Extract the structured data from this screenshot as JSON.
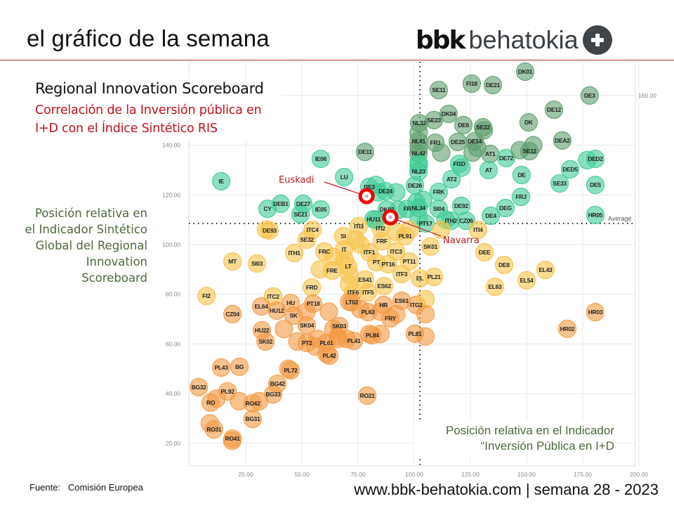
{
  "header": {
    "title": "el gráfico de la semana",
    "logo_bold": "bbk",
    "logo_text": "behatokia"
  },
  "footer": {
    "source": "Fuente:   Comisión Europea",
    "website": "www.bbk-behatokia.com | semana 28 - 2023"
  },
  "colors": {
    "accent_red": "#c0141c",
    "dark_green": "#5e9e6c",
    "green": "#3fcb95",
    "yellow": "#f7c34a",
    "orange": "#f49a44",
    "rule": "#aa3333"
  },
  "chart_data": {
    "type": "scatter",
    "title": "Regional Innovation Scoreboard",
    "subtitle": "Correlación de la Inversión pública en I+D con el Índice Sintético RIS",
    "xlabel": "Posición relativa en el Indicador “Inversión Pública en I+D",
    "ylabel": "Posición relativa en el Indicador Sintético Global del Regional Innovation Scoreboard",
    "xlim": [
      0,
      200
    ],
    "ylim": [
      11,
      173
    ],
    "x_ticks": [
      "25.00",
      "50.00",
      "75.00",
      "100.00",
      "125.00",
      "150.00",
      "175.00",
      "200.00"
    ],
    "y_ticks": [
      "20.00",
      "40.00",
      "60.00",
      "80.00",
      "100.00",
      "120.00",
      "140.00",
      "160.00"
    ],
    "grid": true,
    "x_average": 102.5,
    "y_average": 108.5,
    "average_label": "Average",
    "highlights": [
      {
        "name": "Euskadi",
        "x": 78.8,
        "y": 119.5
      },
      {
        "name": "Navarra",
        "x": 89.4,
        "y": 111.0
      }
    ],
    "points": [
      [
        "DK01",
        149.4,
        169.6
      ],
      [
        "FI18",
        125.6,
        164.8
      ],
      [
        "DE21",
        135,
        164.2
      ],
      [
        "SE11",
        110.9,
        162.2
      ],
      [
        "DE3",
        178.1,
        160
      ],
      [
        "DE12",
        162.2,
        154.3
      ],
      [
        "DK",
        150.9,
        149.2
      ],
      [
        "DK04",
        115.3,
        152.6
      ],
      [
        "SE23",
        108.8,
        150.1
      ],
      [
        "NL32",
        102.2,
        148.9
      ],
      [
        "DE6",
        121.9,
        148.1
      ],
      [
        "SE22",
        130.6,
        147.2
      ],
      [
        "DEA2",
        165.9,
        141.9
      ],
      [
        "NL41",
        101.9,
        141.6
      ],
      [
        "FR1",
        109.4,
        141
      ],
      [
        "DE25",
        119.4,
        141.3
      ],
      [
        "DE14",
        126.9,
        141.6
      ],
      [
        "DE11",
        78.1,
        137.3
      ],
      [
        "SE12",
        151.3,
        137.6
      ],
      [
        "NL42",
        101.9,
        136.8
      ],
      [
        "AT1",
        133.8,
        136.5
      ],
      [
        "DE72",
        140.9,
        134.8
      ],
      [
        "IE06",
        58.4,
        134.5
      ],
      [
        "DED2",
        180.6,
        134.5
      ],
      [
        "FI1D",
        120,
        132.5
      ],
      [
        "NL23",
        101.9,
        129.4
      ],
      [
        "AT",
        133.1,
        130
      ],
      [
        "DE",
        147.8,
        128
      ],
      [
        "DED5",
        169.4,
        130.3
      ],
      [
        "LU",
        68.8,
        127.2
      ],
      [
        "IE",
        14.1,
        125.5
      ],
      [
        "AT2",
        116.6,
        126.3
      ],
      [
        "SE33",
        164.7,
        124.6
      ],
      [
        "DE5",
        180.6,
        124
      ],
      [
        "BE3",
        80,
        123.2
      ],
      [
        "DE24",
        87.2,
        121.5
      ],
      [
        "DE26",
        100.3,
        123.8
      ],
      [
        "FRK",
        110.9,
        121.2
      ],
      [
        "FRJ",
        147.5,
        119.2
      ],
      [
        "CY",
        34.7,
        114.4
      ],
      [
        "DEB1",
        40.6,
        116.4
      ],
      [
        "DE27",
        50.6,
        116.4
      ],
      [
        "IE05",
        58.4,
        114.1
      ],
      [
        "SE21",
        49.4,
        112.2
      ],
      [
        "DK02",
        87.8,
        114.1
      ],
      [
        "FR",
        96.9,
        114.4
      ],
      [
        "NL34",
        101.9,
        114.7
      ],
      [
        "SI04",
        110.9,
        114.4
      ],
      [
        "DE92",
        120.9,
        115.6
      ],
      [
        "DEG",
        140.6,
        114.7
      ],
      [
        "DE4",
        134.1,
        111.6
      ],
      [
        "HR05",
        180.6,
        111.9
      ],
      [
        "HU11",
        81.9,
        110.2
      ],
      [
        "CZ06",
        123.1,
        109.6
      ],
      [
        "ITH2",
        116.3,
        109.6
      ],
      [
        "PT17",
        105,
        108.5
      ],
      [
        "ITI3",
        75.3,
        107.4
      ],
      [
        "ITI2",
        85,
        106.5
      ],
      [
        "ITI4",
        128.4,
        105.9
      ],
      [
        "DE93",
        35.6,
        105.7
      ],
      [
        "ITC4",
        54.7,
        105.9
      ],
      [
        "SE32",
        52.2,
        102
      ],
      [
        "SI",
        68.4,
        103.4
      ],
      [
        "FRF",
        85.6,
        101.4
      ],
      [
        "PL91",
        95.9,
        103.4
      ],
      [
        "SK01",
        107.2,
        99.2
      ],
      [
        "DEE",
        131.3,
        96.9
      ],
      [
        "ITH1",
        46.6,
        96.6
      ],
      [
        "FRC",
        60,
        97.2
      ],
      [
        "IT",
        68.8,
        98
      ],
      [
        "ITF1",
        80,
        96.9
      ],
      [
        "ITC3",
        91.9,
        97.2
      ],
      [
        "MT",
        19.1,
        93.2
      ],
      [
        "SI03",
        30,
        92.4
      ],
      [
        "PT",
        83.1,
        92.9
      ],
      [
        "PT16",
        88.4,
        92.1
      ],
      [
        "PT11",
        97.8,
        93.2
      ],
      [
        "DE8",
        140,
        91.8
      ],
      [
        "FRE",
        63.4,
        89.5
      ],
      [
        "LT",
        70.6,
        91.2
      ],
      [
        "EL43",
        158.4,
        89.8
      ],
      [
        "ITF3",
        94.4,
        88.1
      ],
      [
        "EL",
        102.5,
        86.4
      ],
      [
        "PL21",
        108.8,
        87
      ],
      [
        "EL54",
        150,
        85.6
      ],
      [
        "ES41",
        78.1,
        85.9
      ],
      [
        "ES62",
        86.6,
        83.3
      ],
      [
        "EL63",
        135.9,
        83
      ],
      [
        "FRD",
        54.4,
        82.7
      ],
      [
        "ITF6",
        72.8,
        80.8
      ],
      [
        "ITF5",
        79.4,
        80.8
      ],
      [
        "FI2",
        7.5,
        79.3
      ],
      [
        "ITC2",
        37.2,
        79.1
      ],
      [
        "HU",
        45,
        76.5
      ],
      [
        "PT18",
        55,
        76.2
      ],
      [
        "LT02",
        72.2,
        76.8
      ],
      [
        "ES61",
        94.4,
        77.4
      ],
      [
        "HR",
        86.3,
        75.7
      ],
      [
        "ITG2",
        100.9,
        75.7
      ],
      [
        "EL64",
        31.9,
        75.1
      ],
      [
        "HU12",
        38.8,
        73.4
      ],
      [
        "PL63",
        79.4,
        72.8
      ],
      [
        "HR03",
        180.6,
        72.8
      ],
      [
        "CZ04",
        19.1,
        72
      ],
      [
        "SK",
        46.3,
        71.4
      ],
      [
        "FRY",
        89.4,
        70.3
      ],
      [
        "HU22",
        32.2,
        65.5
      ],
      [
        "SK04",
        52.2,
        67.5
      ],
      [
        "SK03",
        66.6,
        67.2
      ],
      [
        "HR02",
        168.1,
        66.1
      ],
      [
        "PL84",
        81.3,
        63.5
      ],
      [
        "PL81",
        100.3,
        64.1
      ],
      [
        "PL41",
        73.1,
        61.2
      ],
      [
        "SK02",
        33.8,
        61
      ],
      [
        "PT2",
        52.2,
        60.4
      ],
      [
        "PL61",
        60.9,
        60.4
      ],
      [
        "PL42",
        62.2,
        55.3
      ],
      [
        "PL43",
        14.1,
        50.5
      ],
      [
        "BG",
        22.2,
        50.8
      ],
      [
        "PL72",
        45,
        49.4
      ],
      [
        "BG42",
        39.1,
        44
      ],
      [
        "BG32",
        4.1,
        42.6
      ],
      [
        "PL92",
        16.9,
        40.9
      ],
      [
        "BG33",
        37.2,
        39.7
      ],
      [
        "RO21",
        79.1,
        39.2
      ],
      [
        "RO",
        9.4,
        36.4
      ],
      [
        "RO42",
        28.1,
        36.1
      ],
      [
        "BG31",
        28.1,
        29.8
      ],
      [
        "RO31",
        10.9,
        25.6
      ],
      [
        "RO41",
        19.1,
        21.9
      ],
      [
        "",
        102,
        145
      ],
      [
        "",
        102,
        139
      ],
      [
        "",
        102,
        133
      ],
      [
        "",
        102,
        132
      ],
      [
        "",
        104,
        118
      ],
      [
        "",
        112,
        137
      ],
      [
        "",
        131,
        146
      ],
      [
        "",
        128,
        139
      ],
      [
        "",
        147,
        138
      ],
      [
        "",
        153,
        140
      ],
      [
        "",
        177,
        134
      ],
      [
        "",
        126,
        137
      ],
      [
        "",
        121,
        131
      ],
      [
        "",
        83,
        124
      ],
      [
        "",
        84,
        121
      ],
      [
        "",
        92,
        121
      ],
      [
        "",
        93,
        114
      ],
      [
        "",
        101,
        117
      ],
      [
        "",
        114,
        110
      ],
      [
        "",
        102,
        111
      ],
      [
        "",
        83,
        110
      ],
      [
        "",
        74,
        102
      ],
      [
        "",
        76,
        100
      ],
      [
        "",
        69,
        94
      ],
      [
        "",
        71,
        88
      ],
      [
        "",
        64,
        95
      ],
      [
        "",
        58,
        90
      ],
      [
        "",
        92,
        105
      ],
      [
        "",
        98,
        106
      ],
      [
        "",
        112,
        106
      ],
      [
        "",
        105,
        78
      ],
      [
        "",
        105,
        72
      ],
      [
        "",
        105,
        63
      ],
      [
        "",
        52,
        73
      ],
      [
        "",
        62,
        73
      ],
      [
        "",
        76,
        74
      ],
      [
        "",
        85,
        73
      ],
      [
        "",
        92,
        72
      ],
      [
        "",
        66,
        62
      ],
      [
        "",
        70,
        62
      ],
      [
        "",
        80,
        64
      ],
      [
        "",
        85,
        64
      ],
      [
        "",
        71,
        77
      ],
      [
        "",
        71,
        84
      ],
      [
        "",
        57,
        62
      ],
      [
        "",
        61,
        56
      ],
      [
        "",
        42,
        66
      ],
      [
        "",
        44,
        50
      ],
      [
        "",
        12,
        38
      ],
      [
        "",
        22,
        37
      ],
      [
        "",
        31,
        37
      ],
      [
        "",
        9,
        28
      ],
      [
        "",
        19,
        21
      ],
      [
        "",
        48,
        61
      ],
      [
        "",
        56,
        59
      ],
      [
        "",
        64,
        66
      ],
      [
        "",
        66,
        63
      ],
      [
        "",
        34,
        106
      ]
    ]
  }
}
